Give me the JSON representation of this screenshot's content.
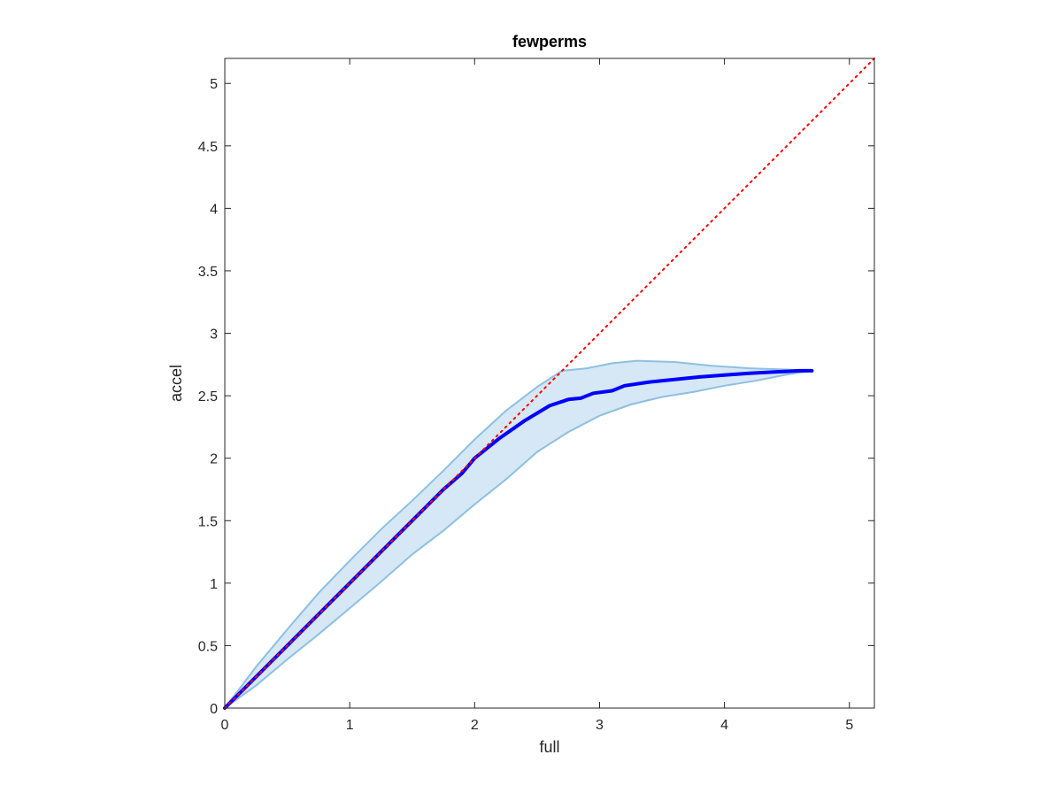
{
  "chart_data": {
    "type": "line",
    "title": "fewperms",
    "xlabel": "full",
    "ylabel": "accel",
    "xlim": [
      0,
      5.2
    ],
    "ylim": [
      0,
      5.2
    ],
    "xticks": [
      0,
      1,
      2,
      3,
      4,
      5
    ],
    "xtick_labels": [
      "0",
      "1",
      "2",
      "3",
      "4",
      "5"
    ],
    "yticks": [
      0,
      0.5,
      1,
      1.5,
      2,
      2.5,
      3,
      3.5,
      4,
      4.5,
      5
    ],
    "ytick_labels": [
      "0",
      "0.5",
      "1",
      "1.5",
      "2",
      "2.5",
      "3",
      "3.5",
      "4",
      "4.5",
      "5"
    ],
    "grid": false,
    "box": true,
    "series": [
      {
        "style": "solid-thick",
        "color": "#0000ff",
        "x": [
          0,
          0.25,
          0.5,
          0.75,
          1.0,
          1.25,
          1.5,
          1.75,
          1.9,
          2.0,
          2.2,
          2.4,
          2.6,
          2.75,
          2.85,
          2.95,
          3.1,
          3.2,
          3.4,
          3.6,
          3.8,
          4.0,
          4.2,
          4.4,
          4.6,
          4.7
        ],
        "y": [
          0,
          0.25,
          0.5,
          0.75,
          1.0,
          1.25,
          1.5,
          1.75,
          1.88,
          2.0,
          2.16,
          2.3,
          2.42,
          2.47,
          2.48,
          2.52,
          2.54,
          2.58,
          2.61,
          2.63,
          2.65,
          2.665,
          2.68,
          2.69,
          2.7,
          2.7
        ]
      },
      {
        "style": "dotted",
        "color": "#ff0000",
        "x": [
          0,
          5.2
        ],
        "y": [
          0,
          5.2
        ]
      }
    ],
    "band": {
      "fill": "#d6e7f5",
      "edge": "#8dc0e0",
      "upper": {
        "x": [
          0,
          0.25,
          0.5,
          0.75,
          1.0,
          1.25,
          1.5,
          1.75,
          2.0,
          2.25,
          2.5,
          2.7,
          2.9,
          3.1,
          3.3,
          3.6,
          3.9,
          4.2,
          4.5,
          4.7
        ],
        "y": [
          0,
          0.33,
          0.63,
          0.92,
          1.18,
          1.43,
          1.66,
          1.9,
          2.15,
          2.38,
          2.57,
          2.7,
          2.72,
          2.76,
          2.78,
          2.77,
          2.74,
          2.72,
          2.71,
          2.7
        ]
      },
      "lower": {
        "x": [
          0,
          0.25,
          0.5,
          0.75,
          1.0,
          1.25,
          1.5,
          1.75,
          2.0,
          2.25,
          2.5,
          2.75,
          3.0,
          3.25,
          3.5,
          3.75,
          4.0,
          4.25,
          4.5,
          4.7
        ],
        "y": [
          0,
          0.18,
          0.39,
          0.59,
          0.8,
          1.01,
          1.23,
          1.42,
          1.63,
          1.83,
          2.05,
          2.21,
          2.34,
          2.43,
          2.49,
          2.53,
          2.58,
          2.62,
          2.67,
          2.7
        ]
      }
    }
  }
}
